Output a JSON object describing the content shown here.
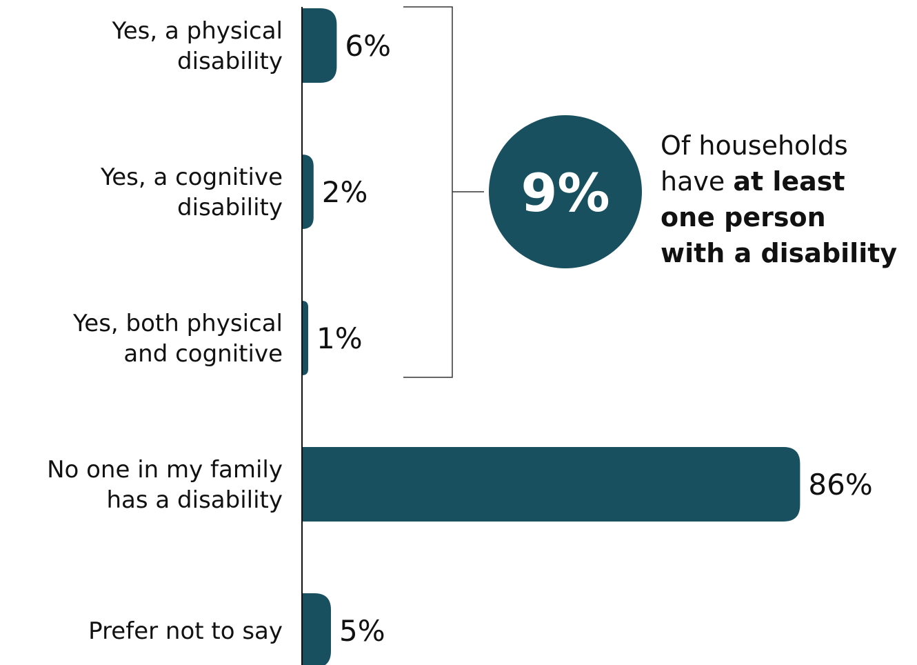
{
  "chart_data": {
    "type": "bar",
    "orientation": "horizontal",
    "categories": [
      [
        "Yes, a physical",
        "disability"
      ],
      [
        "Yes, a cognitive",
        "disability"
      ],
      [
        "Yes, both physical",
        "and cognitive"
      ],
      [
        "No one in my family",
        "has a disability"
      ],
      [
        "Prefer not to say"
      ]
    ],
    "values": [
      6,
      2,
      1,
      86,
      5
    ],
    "value_labels": [
      "6%",
      "2%",
      "1%",
      "86%",
      "5%"
    ],
    "unit": "%",
    "xlim": [
      0,
      100
    ],
    "bar_color": "#18505F",
    "grid": false,
    "legend": "none",
    "callout": {
      "value": "9%",
      "bracket_groups": [
        0,
        1,
        2
      ],
      "text_lines": [
        [
          {
            "text": "Of households",
            "bold": false
          }
        ],
        [
          {
            "text": "have ",
            "bold": false
          },
          {
            "text": "at least",
            "bold": true
          }
        ],
        [
          {
            "text": "one person",
            "bold": true
          }
        ],
        [
          {
            "text": "with a disability",
            "bold": true
          }
        ]
      ],
      "circle_color": "#18505F"
    }
  }
}
